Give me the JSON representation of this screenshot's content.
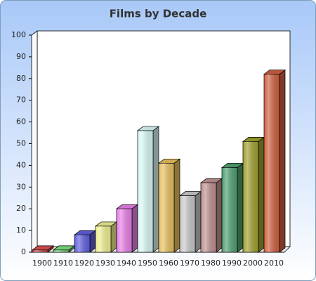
{
  "chart_data": {
    "type": "bar3d",
    "title": "Films by Decade",
    "categories": [
      "1900",
      "1910",
      "1920",
      "1930",
      "1940",
      "1950",
      "1960",
      "1970",
      "1980",
      "1990",
      "2000",
      "2010"
    ],
    "values": [
      1,
      1,
      8,
      12,
      20,
      56,
      41,
      26,
      32,
      39,
      51,
      82
    ],
    "colors": [
      "#e05050",
      "#80e080",
      "#6060e0",
      "#f0f090",
      "#e880e8",
      "#d8f8f4",
      "#e8c060",
      "#c8c8c8",
      "#c09090",
      "#50a070",
      "#a0a030",
      "#d06040"
    ],
    "ylim": [
      0,
      100
    ],
    "yticks": [
      0,
      10,
      20,
      30,
      40,
      50,
      60,
      70,
      80,
      90,
      100
    ]
  }
}
